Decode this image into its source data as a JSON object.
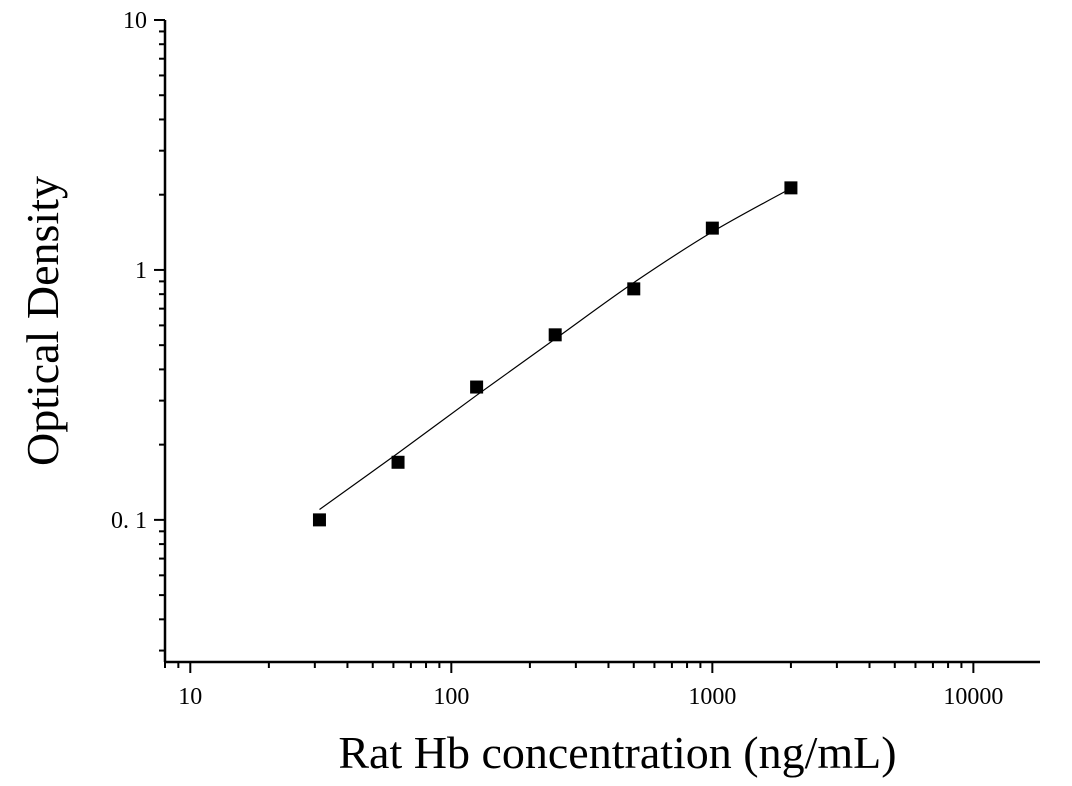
{
  "chart_data": {
    "type": "scatter",
    "title": "",
    "xlabel": "Rat Hb concentration (ng/mL)",
    "ylabel": "Optical Density",
    "x_scale": "log",
    "y_scale": "log",
    "xlim": [
      8,
      18000
    ],
    "ylim": [
      0.027,
      10
    ],
    "x_ticks": [
      10,
      100,
      1000,
      10000
    ],
    "x_tick_labels": [
      "10",
      "100",
      "1000",
      "10000"
    ],
    "y_ticks": [
      0.1,
      1,
      10
    ],
    "y_tick_labels": [
      "0. 1",
      "1",
      "10"
    ],
    "grid": false,
    "legend": "none",
    "series": [
      {
        "marker": "square",
        "color": "#000000",
        "x": [
          31.25,
          62.5,
          125,
          250,
          500,
          1000,
          2000
        ],
        "y": [
          0.1,
          0.17,
          0.34,
          0.55,
          0.84,
          1.47,
          2.13
        ]
      }
    ],
    "fit": {
      "color": "#000000",
      "x": [
        31.25,
        62.5,
        125,
        250,
        500,
        1000,
        2000
      ],
      "y": [
        0.11,
        0.185,
        0.315,
        0.53,
        0.89,
        1.42,
        2.12
      ]
    }
  }
}
